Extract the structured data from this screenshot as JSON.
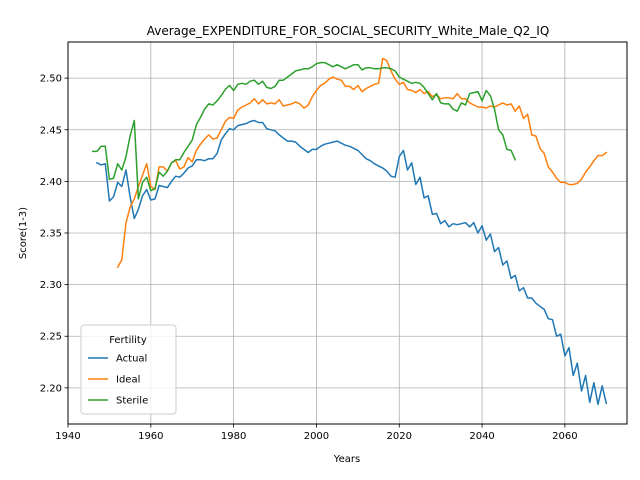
{
  "chart_data": {
    "type": "line",
    "title": "Average_EXPENDITURE_FOR_SOCIAL_SECURITY_White_Male_Q2_IQ",
    "xlabel": "Years",
    "ylabel": "Score(1-3)",
    "xlim": [
      1940,
      2075
    ],
    "ylim": [
      2.165,
      2.535
    ],
    "xticks": [
      1940,
      1960,
      1980,
      2000,
      2020,
      2040,
      2060
    ],
    "yticks": [
      2.2,
      2.25,
      2.3,
      2.35,
      2.4,
      2.45,
      2.5
    ],
    "grid": true,
    "legend": {
      "title": "Fertility",
      "position": "lower-left"
    },
    "series": [
      {
        "name": "Actual",
        "color": "#1f77b4",
        "x": [
          1947,
          1948,
          1949,
          1950,
          1951,
          1952,
          1953,
          1954,
          1955,
          1956,
          1957,
          1958,
          1959,
          1960,
          1961,
          1962,
          1963,
          1964,
          1965,
          1966,
          1967,
          1968,
          1969,
          1970,
          1971,
          1972,
          1973,
          1974,
          1975,
          1976,
          1977,
          1978,
          1979,
          1980,
          1981,
          1982,
          1983,
          1984,
          1985,
          1986,
          1987,
          1988,
          1989,
          1990,
          1991,
          1992,
          1993,
          1994,
          1995,
          1996,
          1997,
          1998,
          1999,
          2000,
          2001,
          2002,
          2003,
          2004,
          2005,
          2006,
          2007,
          2008,
          2009,
          2010,
          2011,
          2012,
          2013,
          2014,
          2015,
          2016,
          2017,
          2018,
          2019,
          2020,
          2021,
          2022,
          2023,
          2024,
          2025,
          2026,
          2027,
          2028,
          2029,
          2030,
          2031,
          2032,
          2033,
          2034,
          2035,
          2036,
          2037,
          2038,
          2039,
          2040,
          2041,
          2042,
          2043,
          2044,
          2045,
          2046,
          2047,
          2048,
          2049,
          2050,
          2051,
          2052,
          2053,
          2054,
          2055,
          2056,
          2057,
          2058,
          2059,
          2060,
          2061,
          2062,
          2063,
          2064,
          2065,
          2066,
          2067,
          2068,
          2069,
          2070
        ],
        "y": [
          2.418,
          2.416,
          2.417,
          2.381,
          2.385,
          2.399,
          2.395,
          2.411,
          2.385,
          2.364,
          2.373,
          2.386,
          2.392,
          2.382,
          2.383,
          2.396,
          2.395,
          2.394,
          2.4,
          2.405,
          2.404,
          2.408,
          2.413,
          2.415,
          2.421,
          2.421,
          2.42,
          2.422,
          2.422,
          2.427,
          2.44,
          2.446,
          2.451,
          2.45,
          2.454,
          2.455,
          2.456,
          2.458,
          2.459,
          2.457,
          2.457,
          2.451,
          2.45,
          2.449,
          2.445,
          2.442,
          2.439,
          2.439,
          2.438,
          2.434,
          2.431,
          2.428,
          2.431,
          2.431,
          2.434,
          2.436,
          2.437,
          2.438,
          2.439,
          2.437,
          2.435,
          2.434,
          2.432,
          2.43,
          2.426,
          2.422,
          2.42,
          2.417,
          2.415,
          2.413,
          2.41,
          2.405,
          2.404,
          2.424,
          2.43,
          2.411,
          2.418,
          2.397,
          2.404,
          2.384,
          2.386,
          2.368,
          2.369,
          2.359,
          2.362,
          2.356,
          2.359,
          2.358,
          2.359,
          2.36,
          2.356,
          2.36,
          2.35,
          2.357,
          2.343,
          2.349,
          2.332,
          2.336,
          2.319,
          2.323,
          2.306,
          2.309,
          2.294,
          2.297,
          2.287,
          2.287,
          2.282,
          2.279,
          2.276,
          2.267,
          2.266,
          2.25,
          2.252,
          2.231,
          2.239,
          2.212,
          2.224,
          2.197,
          2.212,
          2.186,
          2.205,
          2.184,
          2.202,
          2.185
        ]
      },
      {
        "name": "Ideal",
        "color": "#ff7f0e",
        "x": [
          1952,
          1953,
          1954,
          1955,
          1956,
          1957,
          1958,
          1959,
          1960,
          1961,
          1962,
          1963,
          1964,
          1965,
          1966,
          1967,
          1968,
          1969,
          1970,
          1971,
          1972,
          1973,
          1974,
          1975,
          1976,
          1977,
          1978,
          1979,
          1980,
          1981,
          1982,
          1983,
          1984,
          1985,
          1986,
          1987,
          1988,
          1989,
          1990,
          1991,
          1992,
          1993,
          1994,
          1995,
          1996,
          1997,
          1998,
          1999,
          2000,
          2001,
          2002,
          2003,
          2004,
          2005,
          2006,
          2007,
          2008,
          2009,
          2010,
          2011,
          2012,
          2013,
          2014,
          2015,
          2016,
          2017,
          2018,
          2019,
          2020,
          2021,
          2022,
          2023,
          2024,
          2025,
          2026,
          2027,
          2028,
          2029,
          2030,
          2031,
          2032,
          2033,
          2034,
          2035,
          2036,
          2037,
          2038,
          2039,
          2040,
          2041,
          2042,
          2043,
          2044,
          2045,
          2046,
          2047,
          2048,
          2049,
          2050,
          2051,
          2052,
          2053,
          2054,
          2055,
          2056,
          2057,
          2058,
          2059,
          2060,
          2061,
          2062,
          2063,
          2064,
          2065,
          2066,
          2067,
          2068,
          2069,
          2070
        ],
        "y": [
          2.317,
          2.324,
          2.36,
          2.375,
          2.383,
          2.395,
          2.406,
          2.417,
          2.395,
          2.392,
          2.414,
          2.414,
          2.41,
          2.418,
          2.42,
          2.412,
          2.414,
          2.423,
          2.419,
          2.43,
          2.436,
          2.441,
          2.445,
          2.441,
          2.442,
          2.45,
          2.458,
          2.462,
          2.461,
          2.469,
          2.472,
          2.474,
          2.476,
          2.48,
          2.475,
          2.479,
          2.475,
          2.476,
          2.475,
          2.479,
          2.473,
          2.474,
          2.475,
          2.477,
          2.475,
          2.471,
          2.474,
          2.482,
          2.488,
          2.493,
          2.495,
          2.499,
          2.501,
          2.499,
          2.498,
          2.492,
          2.492,
          2.489,
          2.493,
          2.487,
          2.49,
          2.492,
          2.494,
          2.495,
          2.519,
          2.517,
          2.507,
          2.499,
          2.494,
          2.496,
          2.489,
          2.488,
          2.486,
          2.489,
          2.485,
          2.487,
          2.482,
          2.484,
          2.48,
          2.481,
          2.481,
          2.48,
          2.485,
          2.48,
          2.48,
          2.476,
          2.474,
          2.472,
          2.472,
          2.471,
          2.473,
          2.472,
          2.474,
          2.476,
          2.474,
          2.475,
          2.468,
          2.473,
          2.461,
          2.465,
          2.445,
          2.444,
          2.432,
          2.427,
          2.414,
          2.409,
          2.403,
          2.399,
          2.399,
          2.397,
          2.397,
          2.398,
          2.402,
          2.409,
          2.414,
          2.42,
          2.425,
          2.425,
          2.428
        ]
      },
      {
        "name": "Sterile",
        "color": "#2ca02c",
        "x": [
          1946,
          1947,
          1948,
          1949,
          1950,
          1951,
          1952,
          1953,
          1954,
          1955,
          1956,
          1957,
          1958,
          1959,
          1960,
          1961,
          1962,
          1963,
          1964,
          1965,
          1966,
          1967,
          1968,
          1969,
          1970,
          1971,
          1972,
          1973,
          1974,
          1975,
          1976,
          1977,
          1978,
          1979,
          1980,
          1981,
          1982,
          1983,
          1984,
          1985,
          1986,
          1987,
          1988,
          1989,
          1990,
          1991,
          1992,
          1993,
          1994,
          1995,
          1996,
          1997,
          1998,
          1999,
          2000,
          2001,
          2002,
          2003,
          2004,
          2005,
          2006,
          2007,
          2008,
          2009,
          2010,
          2011,
          2012,
          2013,
          2014,
          2015,
          2016,
          2017,
          2018,
          2019,
          2020,
          2021,
          2022,
          2023,
          2024,
          2025,
          2026,
          2027,
          2028,
          2029,
          2030,
          2031,
          2032,
          2033,
          2034,
          2035,
          2036,
          2037,
          2038,
          2039,
          2040,
          2041,
          2042,
          2043,
          2044,
          2045,
          2046,
          2047,
          2048
        ],
        "y": [
          2.429,
          2.429,
          2.434,
          2.434,
          2.402,
          2.403,
          2.417,
          2.411,
          2.424,
          2.444,
          2.459,
          2.383,
          2.399,
          2.404,
          2.391,
          2.393,
          2.409,
          2.405,
          2.41,
          2.418,
          2.421,
          2.421,
          2.428,
          2.434,
          2.44,
          2.455,
          2.462,
          2.47,
          2.475,
          2.474,
          2.478,
          2.483,
          2.489,
          2.493,
          2.488,
          2.494,
          2.495,
          2.494,
          2.497,
          2.498,
          2.494,
          2.497,
          2.491,
          2.49,
          2.492,
          2.498,
          2.498,
          2.501,
          2.504,
          2.507,
          2.508,
          2.509,
          2.509,
          2.511,
          2.514,
          2.515,
          2.515,
          2.513,
          2.511,
          2.513,
          2.511,
          2.509,
          2.511,
          2.513,
          2.513,
          2.508,
          2.51,
          2.51,
          2.509,
          2.509,
          2.51,
          2.51,
          2.509,
          2.507,
          2.501,
          2.499,
          2.497,
          2.495,
          2.496,
          2.495,
          2.491,
          2.485,
          2.479,
          2.485,
          2.476,
          2.475,
          2.475,
          2.47,
          2.468,
          2.476,
          2.474,
          2.485,
          2.486,
          2.487,
          2.478,
          2.488,
          2.483,
          2.47,
          2.45,
          2.445,
          2.431,
          2.43,
          2.421
        ]
      }
    ]
  }
}
